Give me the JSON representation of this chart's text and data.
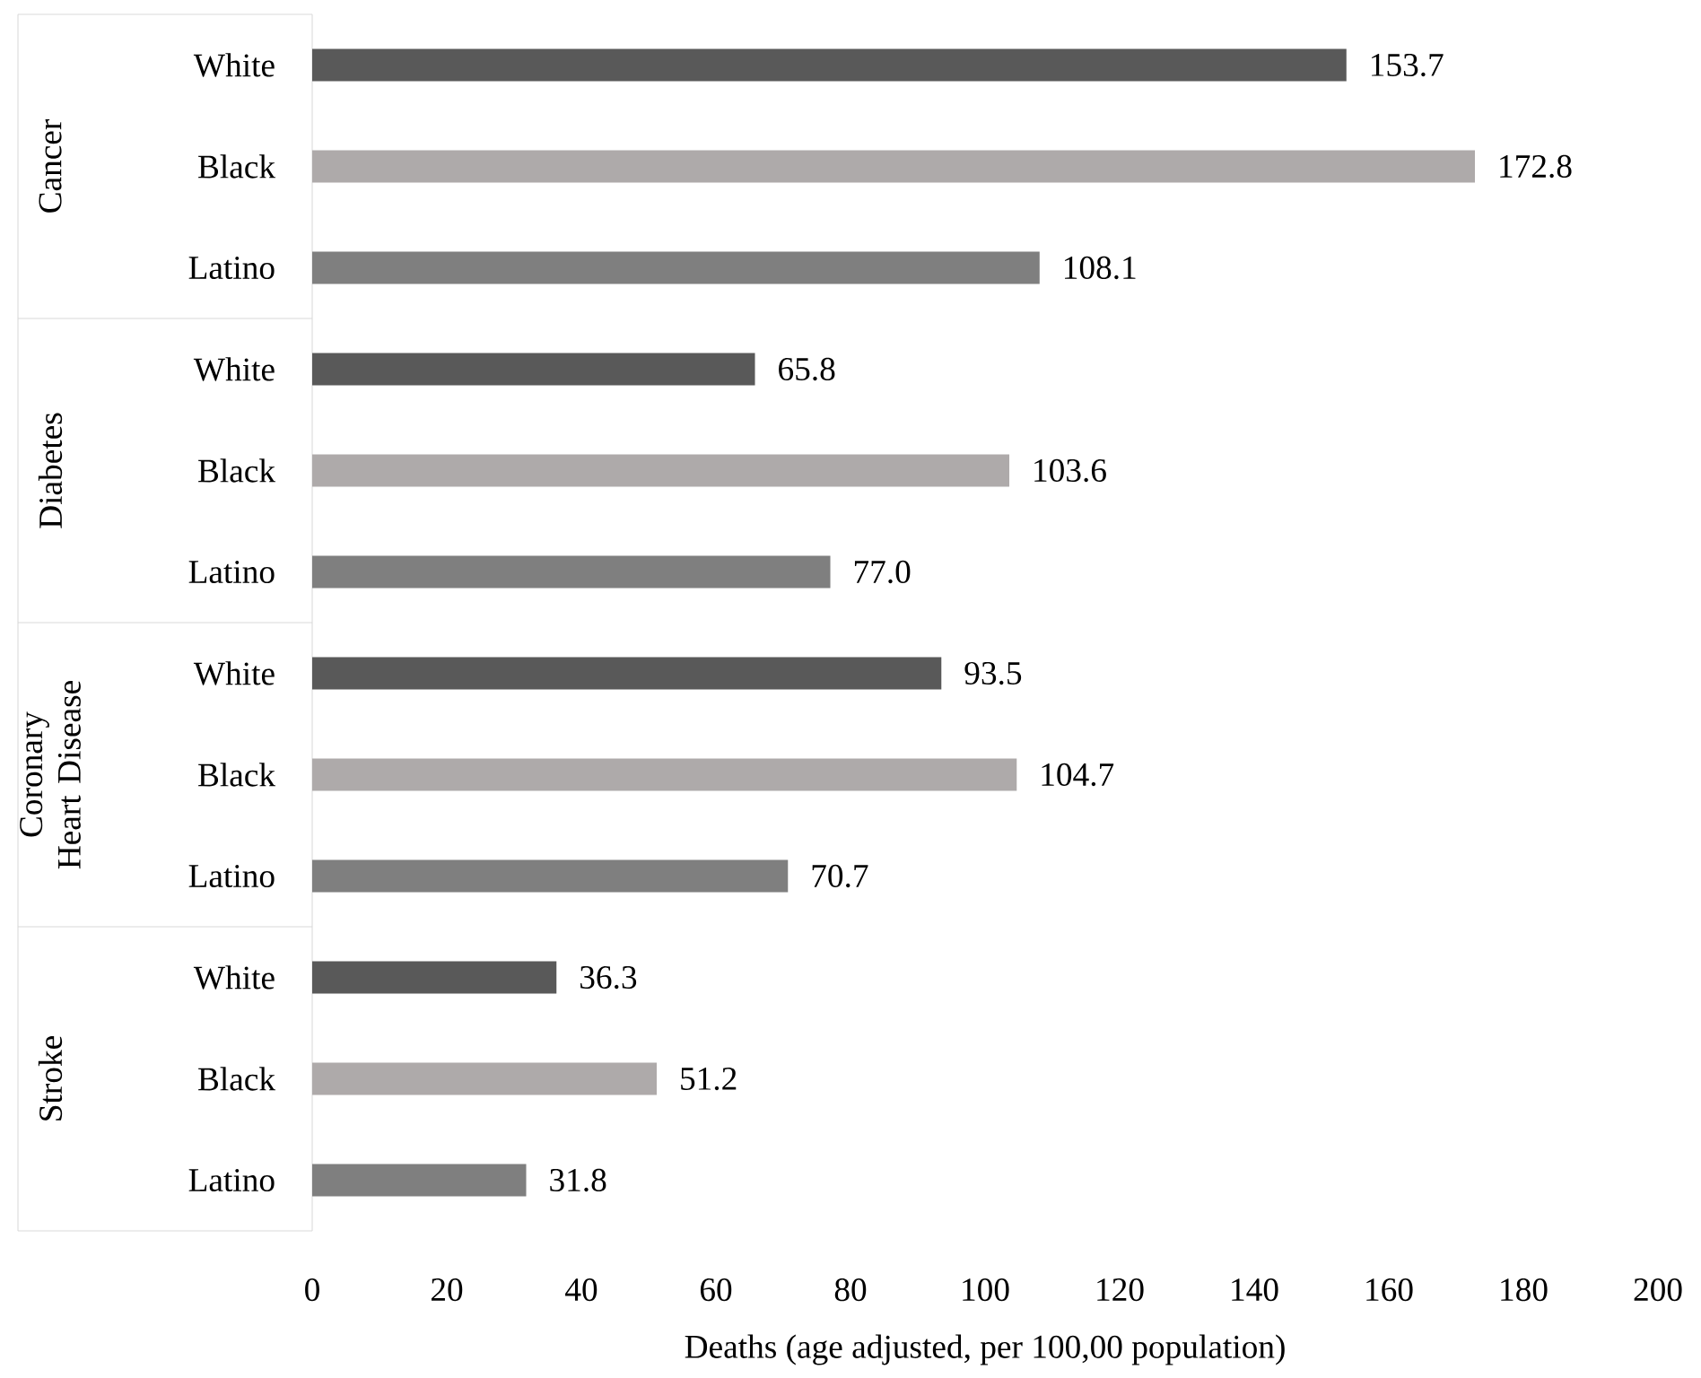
{
  "chart_data": {
    "type": "bar",
    "orientation": "horizontal",
    "xlabel": "Deaths (age adjusted, per 100,00 population)",
    "categories": [
      "White",
      "Black",
      "Latino",
      "White",
      "Black",
      "Latino",
      "White",
      "Black",
      "Latino",
      "White",
      "Black",
      "Latino"
    ],
    "values": [
      153.7,
      172.8,
      108.1,
      65.8,
      103.6,
      77.0,
      93.5,
      104.7,
      70.7,
      36.3,
      51.2,
      31.8
    ],
    "value_labels": [
      "153.7",
      "172.8",
      "108.1",
      "65.8",
      "103.6",
      "77.0",
      "93.5",
      "104.7",
      "70.7",
      "36.3",
      "51.2",
      "31.8"
    ],
    "colors": [
      "#595959",
      "#aeaaaa",
      "#7f7f7f",
      "#595959",
      "#aeaaaa",
      "#7f7f7f",
      "#595959",
      "#aeaaaa",
      "#7f7f7f",
      "#595959",
      "#aeaaaa",
      "#7f7f7f"
    ],
    "annotations": [
      "Cancer",
      "Diabetes",
      "Coronary Heart Disease",
      "Stroke"
    ],
    "xlim": [
      0,
      200
    ],
    "xticks": [
      0,
      20,
      40,
      60,
      80,
      100,
      120,
      140,
      160,
      180,
      200
    ],
    "grid": false
  }
}
